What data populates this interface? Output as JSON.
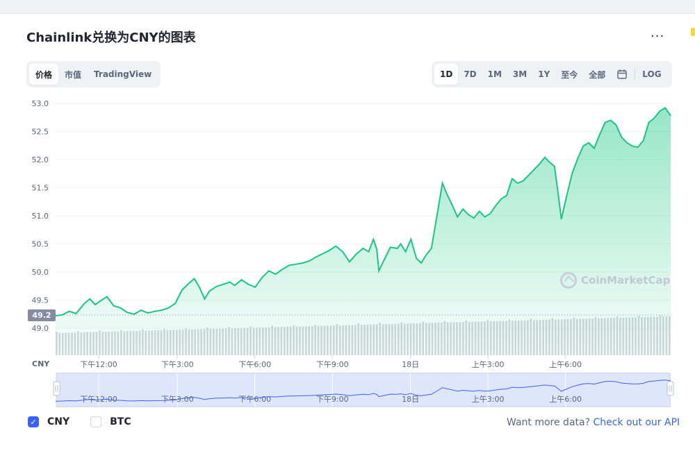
{
  "header": {
    "title": "Chainlink兑换为CNY的图表",
    "more_icon": "more-horizontal-icon",
    "more_glyph": "···"
  },
  "chart_type_tabs": [
    {
      "label": "价格",
      "active": true
    },
    {
      "label": "市值",
      "active": false
    },
    {
      "label": "TradingView",
      "active": false
    }
  ],
  "range_tabs": [
    {
      "label": "1D",
      "active": true
    },
    {
      "label": "7D",
      "active": false
    },
    {
      "label": "1M",
      "active": false
    },
    {
      "label": "3M",
      "active": false
    },
    {
      "label": "1Y",
      "active": false
    },
    {
      "label": "至今",
      "active": false
    },
    {
      "label": "全部",
      "active": false
    }
  ],
  "calendar_icon": "calendar-icon",
  "log_label": "LOG",
  "current_price_label": "49.2",
  "currency_axis_label": "CNY",
  "watermark": "CoinMarketCap",
  "chart_data": {
    "type": "area",
    "ylim": [
      48.8,
      53.1
    ],
    "yticks": [
      49.0,
      49.5,
      50.0,
      50.5,
      51.0,
      51.5,
      52.0,
      52.5,
      53.0
    ],
    "ytick_labels": [
      "49.0",
      "49.5",
      "50.0",
      "50.5",
      "51.0",
      "51.5",
      "52.0",
      "52.5",
      "53.0"
    ],
    "xtick_labels": [
      "下午12:00",
      "下午3:00",
      "下午6:00",
      "下午9:00",
      "18日",
      "上午3:00",
      "上午6:00"
    ],
    "xticks": [
      0.07,
      0.198,
      0.324,
      0.45,
      0.577,
      0.703,
      0.829
    ],
    "series": [
      {
        "color": "#16c784",
        "values": [
          [
            0.0,
            49.22
          ],
          [
            0.01,
            49.24
          ],
          [
            0.02,
            49.3
          ],
          [
            0.03,
            49.26
          ],
          [
            0.042,
            49.44
          ],
          [
            0.05,
            49.52
          ],
          [
            0.058,
            49.42
          ],
          [
            0.065,
            49.48
          ],
          [
            0.075,
            49.56
          ],
          [
            0.085,
            49.4
          ],
          [
            0.095,
            49.36
          ],
          [
            0.105,
            49.28
          ],
          [
            0.115,
            49.25
          ],
          [
            0.125,
            49.32
          ],
          [
            0.135,
            49.27
          ],
          [
            0.145,
            49.3
          ],
          [
            0.155,
            49.32
          ],
          [
            0.165,
            49.36
          ],
          [
            0.175,
            49.44
          ],
          [
            0.185,
            49.68
          ],
          [
            0.195,
            49.8
          ],
          [
            0.203,
            49.88
          ],
          [
            0.21,
            49.74
          ],
          [
            0.218,
            49.52
          ],
          [
            0.225,
            49.66
          ],
          [
            0.235,
            49.74
          ],
          [
            0.245,
            49.78
          ],
          [
            0.255,
            49.82
          ],
          [
            0.262,
            49.76
          ],
          [
            0.272,
            49.86
          ],
          [
            0.282,
            49.78
          ],
          [
            0.292,
            49.73
          ],
          [
            0.302,
            49.9
          ],
          [
            0.312,
            50.02
          ],
          [
            0.322,
            49.96
          ],
          [
            0.332,
            50.05
          ],
          [
            0.342,
            50.12
          ],
          [
            0.352,
            50.14
          ],
          [
            0.362,
            50.16
          ],
          [
            0.372,
            50.2
          ],
          [
            0.38,
            50.26
          ],
          [
            0.39,
            50.32
          ],
          [
            0.4,
            50.38
          ],
          [
            0.41,
            50.46
          ],
          [
            0.42,
            50.36
          ],
          [
            0.43,
            50.18
          ],
          [
            0.44,
            50.32
          ],
          [
            0.45,
            50.42
          ],
          [
            0.458,
            50.36
          ],
          [
            0.465,
            50.58
          ],
          [
            0.47,
            50.4
          ],
          [
            0.473,
            50.02
          ],
          [
            0.48,
            50.2
          ],
          [
            0.49,
            50.44
          ],
          [
            0.5,
            50.42
          ],
          [
            0.505,
            50.5
          ],
          [
            0.512,
            50.36
          ],
          [
            0.52,
            50.58
          ],
          [
            0.528,
            50.24
          ],
          [
            0.535,
            50.16
          ],
          [
            0.542,
            50.3
          ],
          [
            0.55,
            50.42
          ],
          [
            0.558,
            51.0
          ],
          [
            0.566,
            51.58
          ],
          [
            0.572,
            51.4
          ],
          [
            0.58,
            51.2
          ],
          [
            0.588,
            50.98
          ],
          [
            0.596,
            51.12
          ],
          [
            0.604,
            51.02
          ],
          [
            0.612,
            50.96
          ],
          [
            0.62,
            51.08
          ],
          [
            0.628,
            50.98
          ],
          [
            0.636,
            51.04
          ],
          [
            0.644,
            51.18
          ],
          [
            0.652,
            51.3
          ],
          [
            0.66,
            51.36
          ],
          [
            0.668,
            51.66
          ],
          [
            0.676,
            51.58
          ],
          [
            0.684,
            51.62
          ],
          [
            0.692,
            51.72
          ],
          [
            0.7,
            51.82
          ],
          [
            0.708,
            51.92
          ],
          [
            0.716,
            52.04
          ],
          [
            0.722,
            51.96
          ],
          [
            0.73,
            51.88
          ],
          [
            0.735,
            51.42
          ],
          [
            0.74,
            50.94
          ],
          [
            0.748,
            51.36
          ],
          [
            0.756,
            51.76
          ],
          [
            0.764,
            52.02
          ],
          [
            0.772,
            52.24
          ],
          [
            0.78,
            52.3
          ],
          [
            0.788,
            52.2
          ],
          [
            0.796,
            52.44
          ],
          [
            0.804,
            52.66
          ],
          [
            0.812,
            52.7
          ],
          [
            0.82,
            52.62
          ],
          [
            0.828,
            52.4
          ],
          [
            0.836,
            52.3
          ],
          [
            0.844,
            52.24
          ],
          [
            0.852,
            52.22
          ],
          [
            0.86,
            52.34
          ],
          [
            0.868,
            52.66
          ],
          [
            0.876,
            52.74
          ],
          [
            0.884,
            52.86
          ],
          [
            0.892,
            52.92
          ],
          [
            0.9,
            52.78
          ]
        ]
      }
    ],
    "volume": "bars",
    "grid": true
  },
  "navigator": {
    "left_handle_icon": "drag-handle-icon",
    "right_handle_icon": "drag-handle-icon"
  },
  "legend": [
    {
      "label": "CNY",
      "checked": true
    },
    {
      "label": "BTC",
      "checked": false
    }
  ],
  "api": {
    "text": "Want more data? ",
    "link": "Check out our API"
  }
}
